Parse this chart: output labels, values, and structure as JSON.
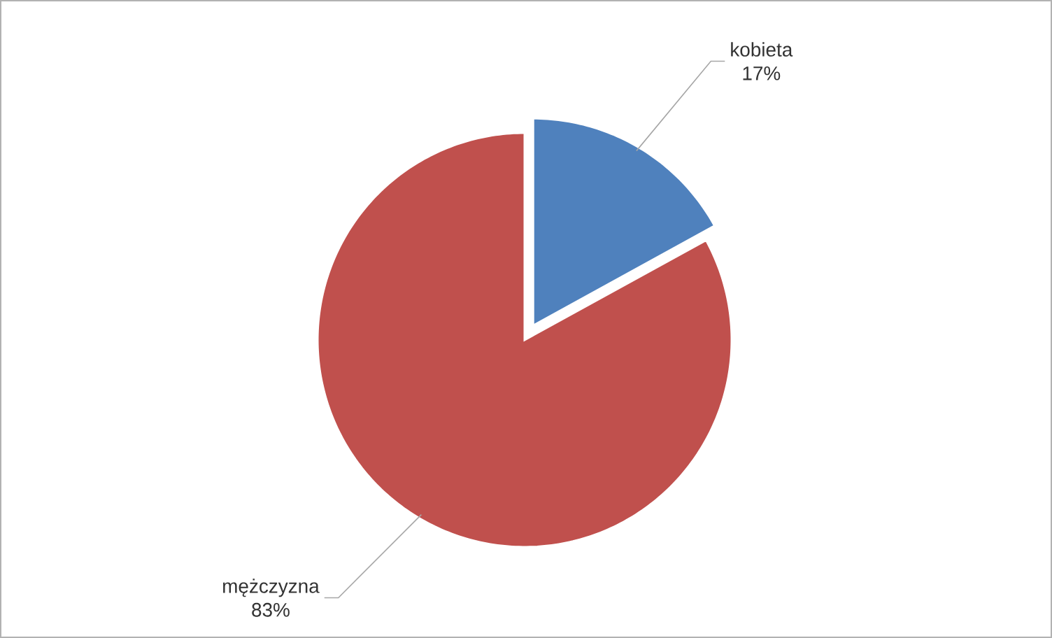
{
  "chart_data": {
    "type": "pie",
    "categories": [
      "kobieta",
      "mężczyzna"
    ],
    "values": [
      17,
      83
    ],
    "value_labels": [
      "17%",
      "83%"
    ],
    "colors": [
      "#4f81bd",
      "#c0504d"
    ],
    "data_labels": true
  }
}
